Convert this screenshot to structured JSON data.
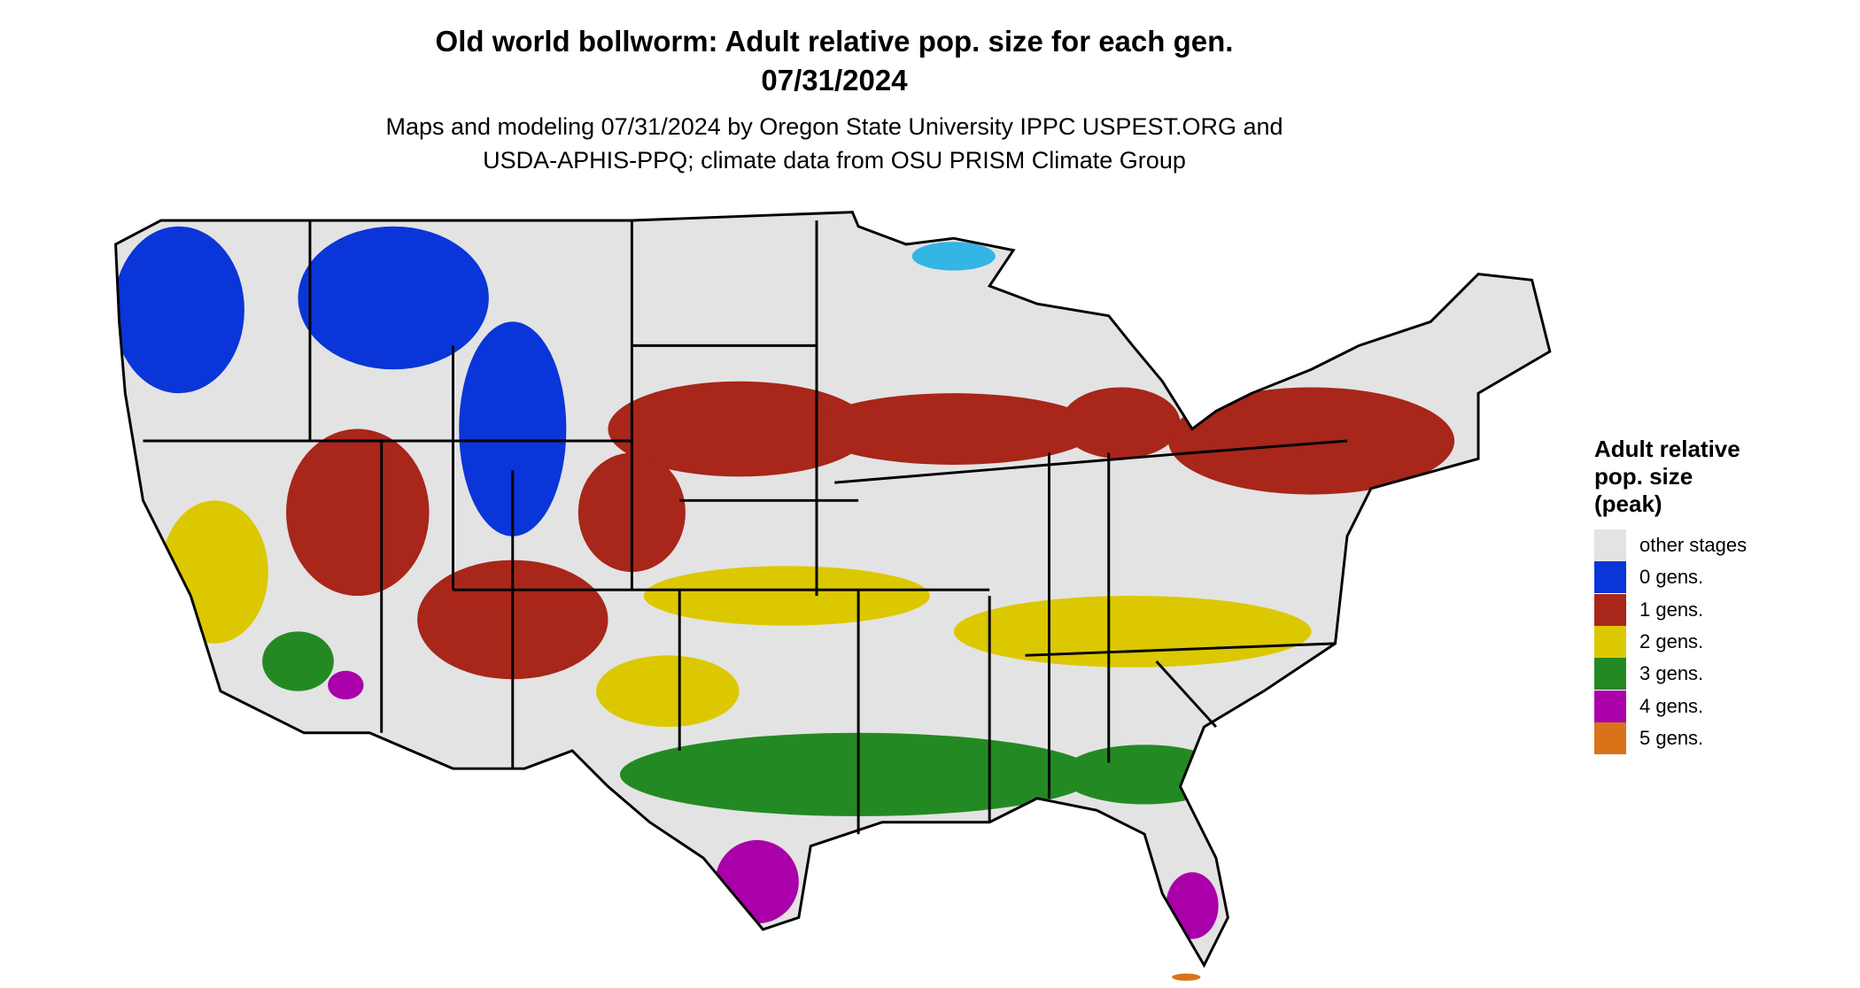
{
  "title": [
    "Old world bollworm: Adult relative pop. size for each gen.",
    "07/31/2024"
  ],
  "subtitle": [
    "Maps and modeling 07/31/2024 by Oregon State University IPPC USPEST.ORG and",
    "USDA-APHIS-PPQ; climate data from OSU PRISM Climate Group"
  ],
  "legend": {
    "title": [
      "Adult relative",
      "pop. size",
      "(peak)"
    ],
    "items": [
      {
        "label": "other stages",
        "color": "#e3e3e3"
      },
      {
        "label": "0 gens.",
        "color": "#0a35d8"
      },
      {
        "label": "1 gens.",
        "color": "#a8261a"
      },
      {
        "label": "2 gens.",
        "color": "#dcc800"
      },
      {
        "label": "3 gens.",
        "color": "#238a23"
      },
      {
        "label": "4 gens.",
        "color": "#aa00aa"
      },
      {
        "label": "5 gens.",
        "color": "#d9731a"
      }
    ]
  }
}
